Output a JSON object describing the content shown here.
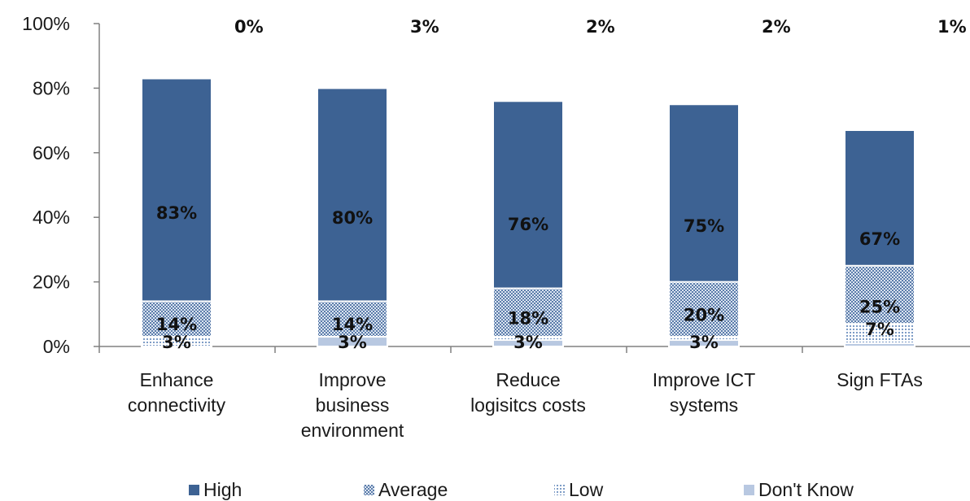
{
  "chart_data": {
    "type": "bar",
    "stacked": true,
    "categories": [
      [
        "Enhance",
        "connectivity"
      ],
      [
        "Improve",
        "business",
        "environment"
      ],
      [
        "Reduce",
        "logisitcs costs"
      ],
      [
        "Improve ICT",
        "systems"
      ],
      [
        "Sign FTAs"
      ]
    ],
    "series": [
      {
        "name": "High",
        "values": [
          83,
          80,
          76,
          75,
          67
        ],
        "labels": [
          "83%",
          "80%",
          "76%",
          "75%",
          "67%"
        ]
      },
      {
        "name": "Average",
        "values": [
          14,
          14,
          18,
          20,
          25
        ],
        "labels": [
          "14%",
          "14%",
          "18%",
          "20%",
          "25%"
        ]
      },
      {
        "name": "Low",
        "values": [
          3,
          3,
          3,
          3,
          7
        ],
        "labels": [
          "3%",
          "3%",
          "3%",
          "3%",
          "7%"
        ]
      },
      {
        "name": "Don't Know",
        "values": [
          0,
          3,
          2,
          2,
          1
        ],
        "labels": [
          "0%",
          "3%",
          "2%",
          "2%",
          "1%"
        ]
      }
    ],
    "y_ticks": [
      "0%",
      "20%",
      "40%",
      "60%",
      "80%",
      "100%"
    ],
    "ylim": [
      0,
      100
    ],
    "title": "",
    "xlabel": "",
    "ylabel": "",
    "grid": false,
    "legend_position": "bottom",
    "colors": {
      "High": "#3d6293",
      "Average": "#6f8db5",
      "Low": "#9fb6d4",
      "Dont_Know": "#b8c8e1",
      "axis": "#808080"
    }
  }
}
